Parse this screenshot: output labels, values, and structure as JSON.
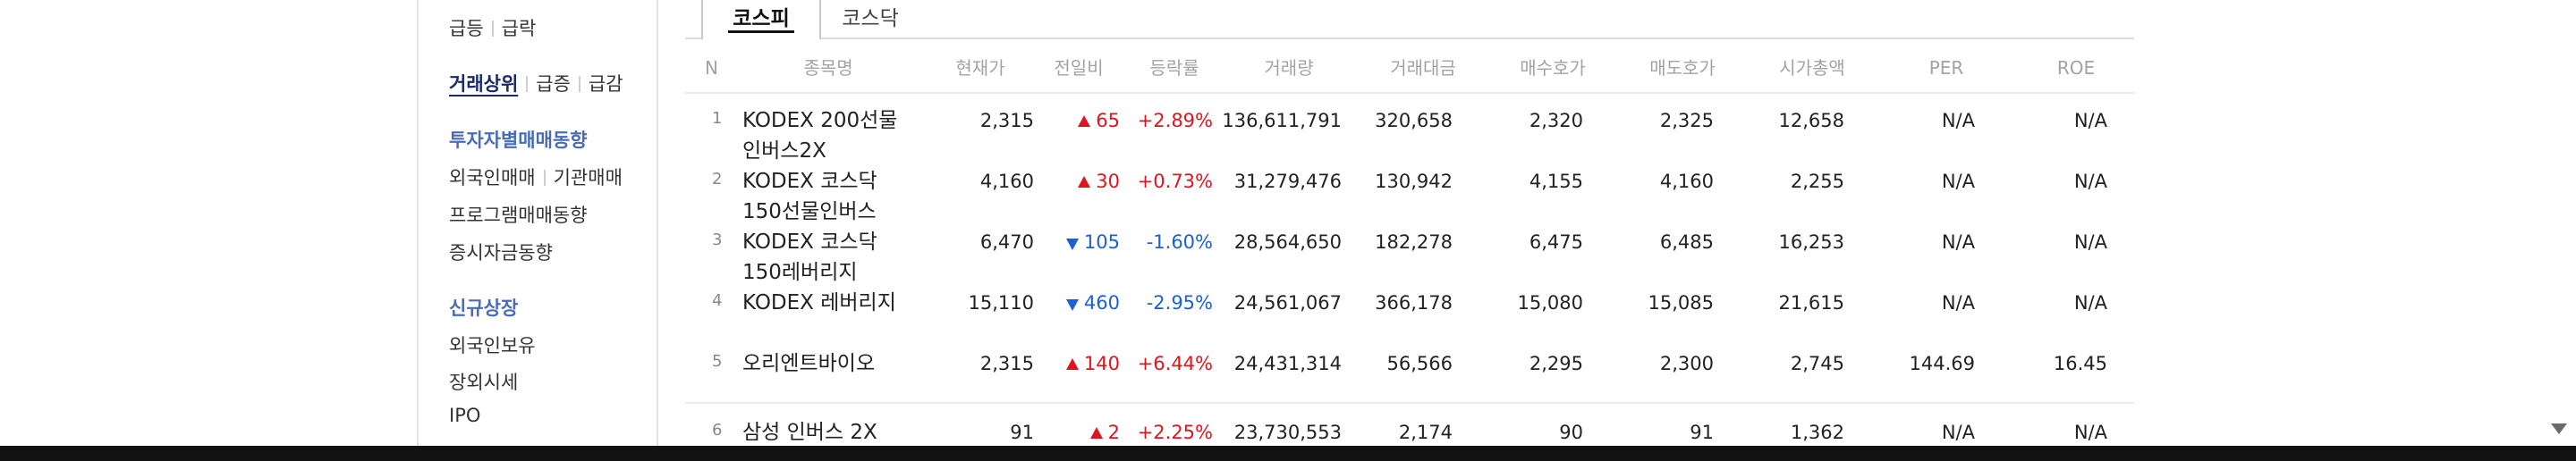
{
  "sidebar": {
    "rows": [
      {
        "items": [
          "급등",
          "급락"
        ]
      },
      {
        "items": [
          "거래상위",
          "급증",
          "급감"
        ]
      },
      {
        "items": [
          "투자자별매매동향"
        ]
      },
      {
        "items": [
          "외국인매매",
          "기관매매"
        ]
      },
      {
        "items": [
          "프로그램매매동향"
        ]
      },
      {
        "items": [
          "증시자금동향"
        ]
      },
      {
        "items": [
          "신규상장"
        ]
      },
      {
        "items": [
          "외국인보유"
        ]
      },
      {
        "items": [
          "장외시세"
        ]
      },
      {
        "items": [
          "IPO"
        ]
      }
    ]
  },
  "tabs": [
    {
      "label": "코스피",
      "active": true
    },
    {
      "label": "코스닥",
      "active": false
    }
  ],
  "columns": [
    "N",
    "종목명",
    "현재가",
    "전일비",
    "등락률",
    "거래량",
    "거래대금",
    "매수호가",
    "매도호가",
    "시가총액",
    "PER",
    "ROE"
  ],
  "rows": [
    {
      "n": "1",
      "name": "KODEX 200선물인버스2X",
      "price": "2,315",
      "dir": "up",
      "change": "65",
      "rate": "+2.89%",
      "volume": "136,611,791",
      "amount": "320,658",
      "bid": "2,320",
      "ask": "2,325",
      "cap": "12,658",
      "per": "N/A",
      "roe": "N/A"
    },
    {
      "n": "2",
      "name": "KODEX 코스닥150선물인버스",
      "price": "4,160",
      "dir": "up",
      "change": "30",
      "rate": "+0.73%",
      "volume": "31,279,476",
      "amount": "130,942",
      "bid": "4,155",
      "ask": "4,160",
      "cap": "2,255",
      "per": "N/A",
      "roe": "N/A"
    },
    {
      "n": "3",
      "name": "KODEX 코스닥150레버리지",
      "price": "6,470",
      "dir": "down",
      "change": "105",
      "rate": "-1.60%",
      "volume": "28,564,650",
      "amount": "182,278",
      "bid": "6,475",
      "ask": "6,485",
      "cap": "16,253",
      "per": "N/A",
      "roe": "N/A"
    },
    {
      "n": "4",
      "name": "KODEX 레버리지",
      "price": "15,110",
      "dir": "down",
      "change": "460",
      "rate": "-2.95%",
      "volume": "24,561,067",
      "amount": "366,178",
      "bid": "15,080",
      "ask": "15,085",
      "cap": "21,615",
      "per": "N/A",
      "roe": "N/A"
    },
    {
      "n": "5",
      "name": "오리엔트바이오",
      "price": "2,315",
      "dir": "up",
      "change": "140",
      "rate": "+6.44%",
      "volume": "24,431,314",
      "amount": "56,566",
      "bid": "2,295",
      "ask": "2,300",
      "cap": "2,745",
      "per": "144.69",
      "roe": "16.45"
    },
    {
      "n": "6",
      "name": "삼성 인버스 2X",
      "price": "91",
      "dir": "up",
      "change": "2",
      "rate": "+2.25%",
      "volume": "23,730,553",
      "amount": "2,174",
      "bid": "90",
      "ask": "91",
      "cap": "1,362",
      "per": "N/A",
      "roe": "N/A"
    }
  ]
}
